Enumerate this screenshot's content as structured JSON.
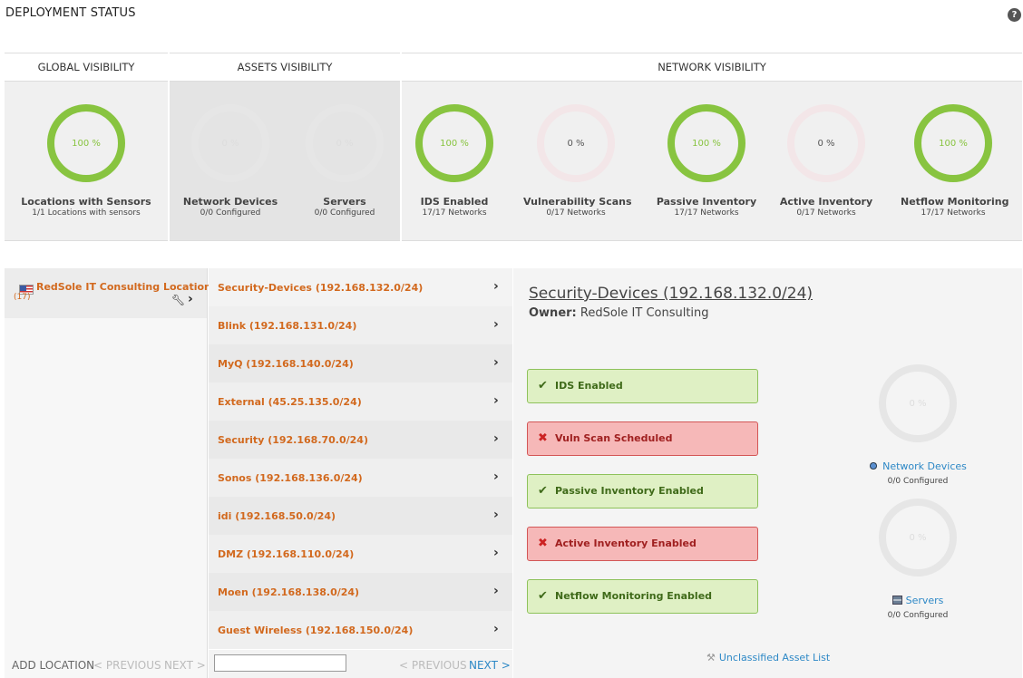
{
  "header": {
    "title": "DEPLOYMENT STATUS",
    "help_icon": "?"
  },
  "visibility": {
    "global": {
      "header": "GLOBAL VISIBILITY",
      "gauges": [
        {
          "value": "100 %",
          "title": "Locations with Sensors",
          "sub": "1/1 Locations with sensors",
          "state": "full"
        }
      ]
    },
    "assets": {
      "header": "ASSETS VISIBILITY",
      "gauges": [
        {
          "value": "0 %",
          "title": "Network Devices",
          "sub": "0/0 Configured",
          "state": "disabled"
        },
        {
          "value": "0 %",
          "title": "Servers",
          "sub": "0/0 Configured",
          "state": "disabled"
        }
      ]
    },
    "network": {
      "header": "NETWORK VISIBILITY",
      "gauges": [
        {
          "value": "100 %",
          "title": "IDS Enabled",
          "sub": "17/17 Networks",
          "state": "full"
        },
        {
          "value": "0 %",
          "title": "Vulnerability Scans",
          "sub": "0/17 Networks",
          "state": "zero"
        },
        {
          "value": "100 %",
          "title": "Passive Inventory",
          "sub": "17/17 Networks",
          "state": "full"
        },
        {
          "value": "0 %",
          "title": "Active Inventory",
          "sub": "0/17 Networks",
          "state": "zero"
        },
        {
          "value": "100 %",
          "title": "Netflow Monitoring",
          "sub": "17/17 Networks",
          "state": "full"
        }
      ]
    }
  },
  "locations": {
    "items": [
      {
        "name": "RedSole IT Consulting Location",
        "count": "(17)"
      }
    ],
    "footer": {
      "add": "ADD LOCATION",
      "prev": "< PREVIOUS",
      "next": "NEXT >"
    }
  },
  "networks": {
    "items": [
      {
        "label": "Security-Devices (192.168.132.0/24)"
      },
      {
        "label": "Blink (192.168.131.0/24)"
      },
      {
        "label": "MyQ (192.168.140.0/24)"
      },
      {
        "label": "External (45.25.135.0/24)"
      },
      {
        "label": "Security (192.168.70.0/24)"
      },
      {
        "label": "Sonos (192.168.136.0/24)"
      },
      {
        "label": "idi (192.168.50.0/24)"
      },
      {
        "label": "DMZ (192.168.110.0/24)"
      },
      {
        "label": "Moen (192.168.138.0/24)"
      },
      {
        "label": "Guest Wireless (192.168.150.0/24)"
      }
    ],
    "footer": {
      "search_value": "",
      "prev": "< PREVIOUS",
      "next": "NEXT >"
    }
  },
  "detail": {
    "title": "Security-Devices (192.168.132.0/24)",
    "owner_label": "Owner:",
    "owner_value": "RedSole IT Consulting",
    "statuses": [
      {
        "label": "IDS Enabled",
        "ok": true
      },
      {
        "label": "Vuln Scan Scheduled",
        "ok": false
      },
      {
        "label": "Passive Inventory Enabled",
        "ok": true
      },
      {
        "label": "Active Inventory Enabled",
        "ok": false
      },
      {
        "label": "Netflow Monitoring Enabled",
        "ok": true
      }
    ],
    "assets": [
      {
        "value": "0 %",
        "title": "Network Devices",
        "sub": "0/0 Configured",
        "icon": "network-device-icon"
      },
      {
        "value": "0 %",
        "title": "Servers",
        "sub": "0/0 Configured",
        "icon": "server-icon"
      }
    ],
    "unclassified_link": "Unclassified Asset List"
  },
  "colors": {
    "ok_ring": "#88c440",
    "ok_box": "#dff0c4",
    "bad_box": "#f6b8b8",
    "link": "#2d88c6",
    "network_label": "#d2691e"
  }
}
